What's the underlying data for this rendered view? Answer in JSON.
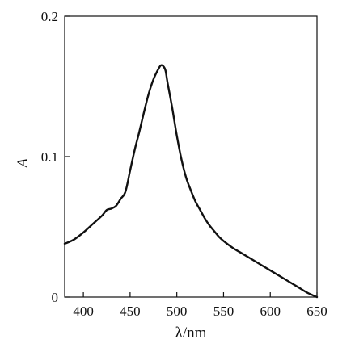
{
  "chart_data": {
    "type": "line",
    "title": "",
    "xlabel": "λ/nm",
    "ylabel": "A",
    "xlim": [
      380,
      650
    ],
    "ylim": [
      0,
      0.2
    ],
    "x_ticks": [
      400,
      450,
      500,
      550,
      600,
      650
    ],
    "x_tick_labels": [
      "400",
      "450",
      "500",
      "550",
      "600",
      "650"
    ],
    "y_ticks": [
      0,
      0.1,
      0.2
    ],
    "y_tick_labels": [
      "0",
      "0.1",
      "0.2"
    ],
    "grid": false,
    "legend": "none",
    "line_color": "#111111",
    "series": [
      {
        "x": [
          380,
          390,
          400,
          410,
          420,
          425,
          430,
          435,
          440,
          445,
          450,
          455,
          460,
          465,
          470,
          475,
          480,
          483,
          486,
          488,
          490,
          495,
          500,
          505,
          510,
          515,
          520,
          525,
          530,
          535,
          540,
          545,
          550,
          560,
          570,
          580,
          590,
          600,
          610,
          620,
          630,
          640,
          650
        ],
        "y": [
          0.038,
          0.041,
          0.046,
          0.052,
          0.058,
          0.062,
          0.063,
          0.065,
          0.07,
          0.075,
          0.09,
          0.105,
          0.118,
          0.132,
          0.145,
          0.155,
          0.162,
          0.165,
          0.164,
          0.161,
          0.153,
          0.135,
          0.115,
          0.098,
          0.085,
          0.076,
          0.068,
          0.062,
          0.056,
          0.051,
          0.047,
          0.043,
          0.04,
          0.035,
          0.031,
          0.027,
          0.023,
          0.019,
          0.015,
          0.011,
          0.007,
          0.003,
          0
        ]
      }
    ]
  }
}
